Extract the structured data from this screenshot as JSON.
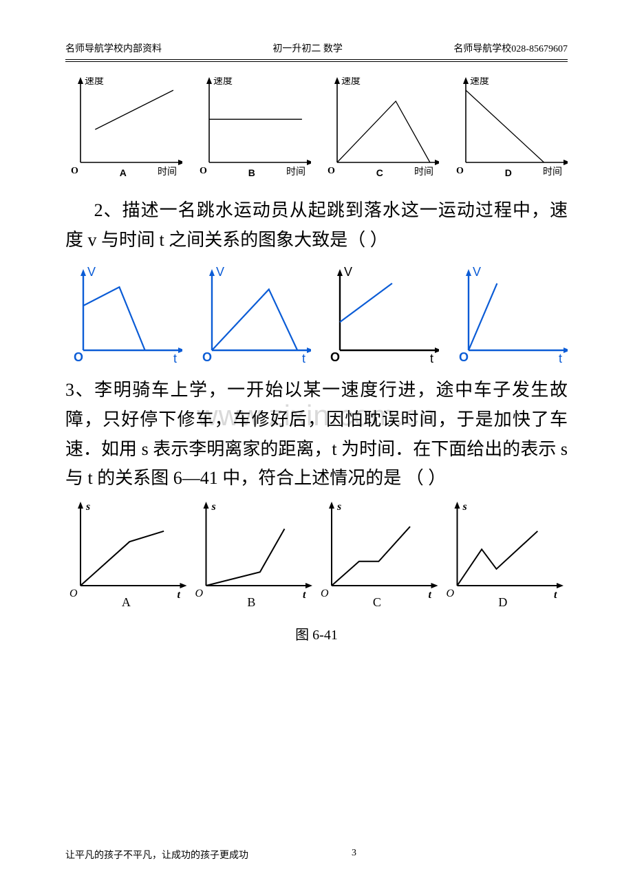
{
  "header": {
    "left": "名师导航学校内部资料",
    "center": "初一升初二 数学",
    "right": "名师导航学校028-85679607"
  },
  "watermark": "www.zixin.com.cn",
  "chart_row1": {
    "x_label": "时间",
    "y_label": "速度",
    "origin": "O",
    "panels": [
      {
        "id": "A",
        "type": "line",
        "points": [
          [
            0.15,
            0.42
          ],
          [
            0.95,
            0.92
          ]
        ]
      },
      {
        "id": "B",
        "type": "line",
        "points": [
          [
            0.0,
            0.55
          ],
          [
            0.95,
            0.55
          ]
        ]
      },
      {
        "id": "C",
        "type": "line",
        "points": [
          [
            0.0,
            0.0
          ],
          [
            0.6,
            0.78
          ],
          [
            0.95,
            0.0
          ]
        ]
      },
      {
        "id": "D",
        "type": "line",
        "points": [
          [
            0.0,
            0.92
          ],
          [
            0.8,
            0.0
          ]
        ]
      }
    ],
    "axis_color": "#000000",
    "line_color": "#000000",
    "label_fontsize": 14,
    "id_fontsize": 14
  },
  "q2": {
    "text": "2、描述一名跳水运动员从起跳到落水这一运动过程中，速度 v 与时间 t 之间关系的图象大致是（   ）"
  },
  "chart_row2": {
    "x_label": "t",
    "y_label": "V",
    "origin": "O",
    "axis_color": "#0b5cd6",
    "line_color": "#0b5cd6",
    "black_axis": "#000000",
    "label_fontsize": 18,
    "panels": [
      {
        "id": "A",
        "axis_color": "#0b5cd6",
        "y_label": "V",
        "y_color": "#0b5cd6",
        "points": [
          [
            0.0,
            0.6
          ],
          [
            0.38,
            0.85
          ],
          [
            0.65,
            0.0
          ]
        ]
      },
      {
        "id": "B",
        "axis_color": "#0b5cd6",
        "y_label": "V",
        "y_color": "#0b5cd6",
        "points": [
          [
            0.0,
            0.0
          ],
          [
            0.6,
            0.82
          ],
          [
            0.9,
            0.0
          ]
        ]
      },
      {
        "id": "C",
        "axis_color": "#000000",
        "y_label": "V",
        "y_color": "#000000",
        "points": [
          [
            0.0,
            0.38
          ],
          [
            0.55,
            0.9
          ]
        ]
      },
      {
        "id": "D",
        "axis_color": "#0b5cd6",
        "y_label": "V",
        "y_color": "#0b5cd6",
        "points": [
          [
            0.0,
            0.0
          ],
          [
            0.3,
            0.9
          ]
        ]
      }
    ]
  },
  "q3": {
    "text": "3、李明骑车上学，一开始以某一速度行进，途中车子发生故障，只好停下修车，车修好后，因怕耽误时间，于是加快了车速．如用 s 表示李明离家的距离，t 为时间．在下面给出的表示 s 与 t 的关系图 6—41 中，符合上述情况的是  （   ）"
  },
  "chart_row3": {
    "x_label": "t",
    "y_label": "s",
    "origin": "O",
    "axis_color": "#000000",
    "line_color": "#000000",
    "label_fontsize": 16,
    "id_fontsize": 18,
    "panels": [
      {
        "id": "A",
        "points": [
          [
            0.0,
            0.0
          ],
          [
            0.5,
            0.58
          ],
          [
            0.85,
            0.72
          ]
        ]
      },
      {
        "id": "B",
        "points": [
          [
            0.0,
            0.0
          ],
          [
            0.55,
            0.18
          ],
          [
            0.8,
            0.75
          ]
        ]
      },
      {
        "id": "C",
        "points": [
          [
            0.0,
            0.0
          ],
          [
            0.28,
            0.32
          ],
          [
            0.48,
            0.32
          ],
          [
            0.8,
            0.78
          ]
        ]
      },
      {
        "id": "D",
        "points": [
          [
            0.0,
            0.0
          ],
          [
            0.25,
            0.48
          ],
          [
            0.4,
            0.22
          ],
          [
            0.82,
            0.72
          ]
        ]
      }
    ],
    "caption": "图 6-41"
  },
  "footer": {
    "text": "让平凡的孩子不平凡，让成功的孩子更成功",
    "page": "3"
  }
}
